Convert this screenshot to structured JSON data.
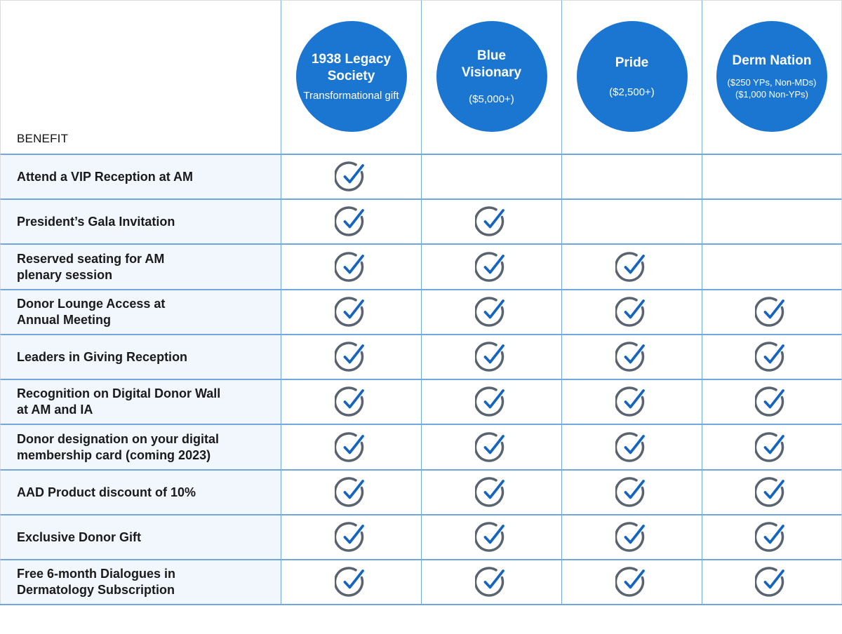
{
  "colors": {
    "circle_fill": "#1b76d2",
    "check_ring": "#5a6470",
    "check_mark": "#1565c0",
    "benefit_bg": "#f2f7fd",
    "gridline": "#6fa7de"
  },
  "header": {
    "benefit_label": "BENEFIT",
    "tiers": [
      {
        "name": "1938 Legacy Society",
        "sub": "Transformational gift"
      },
      {
        "name": "Blue Visionary",
        "sub": "($5,000+)"
      },
      {
        "name": "Pride",
        "sub": "($2,500+)"
      },
      {
        "name": "Derm Nation",
        "sub": "($250 YPs, Non-MDs)\n($1,000 Non-YPs)"
      }
    ]
  },
  "rows": [
    {
      "benefit": "Attend a VIP Reception at AM",
      "checks": [
        true,
        false,
        false,
        false
      ]
    },
    {
      "benefit": "President’s Gala Invitation",
      "checks": [
        true,
        true,
        false,
        false
      ]
    },
    {
      "benefit": "Reserved seating for AM\nplenary session",
      "checks": [
        true,
        true,
        true,
        false
      ]
    },
    {
      "benefit": "Donor Lounge Access at\nAnnual Meeting",
      "checks": [
        true,
        true,
        true,
        true
      ]
    },
    {
      "benefit": "Leaders in Giving Reception",
      "checks": [
        true,
        true,
        true,
        true
      ]
    },
    {
      "benefit": "Recognition on Digital Donor Wall\nat AM and IA",
      "checks": [
        true,
        true,
        true,
        true
      ]
    },
    {
      "benefit": "Donor designation on your digital\nmembership card (coming 2023)",
      "checks": [
        true,
        true,
        true,
        true
      ]
    },
    {
      "benefit": "AAD Product discount of 10%",
      "checks": [
        true,
        true,
        true,
        true
      ]
    },
    {
      "benefit": "Exclusive Donor Gift",
      "checks": [
        true,
        true,
        true,
        true
      ]
    },
    {
      "benefit": "Free 6-month Dialogues in\nDermatology Subscription",
      "checks": [
        true,
        true,
        true,
        true
      ]
    }
  ],
  "icons": {
    "check": "check-circle-icon"
  }
}
